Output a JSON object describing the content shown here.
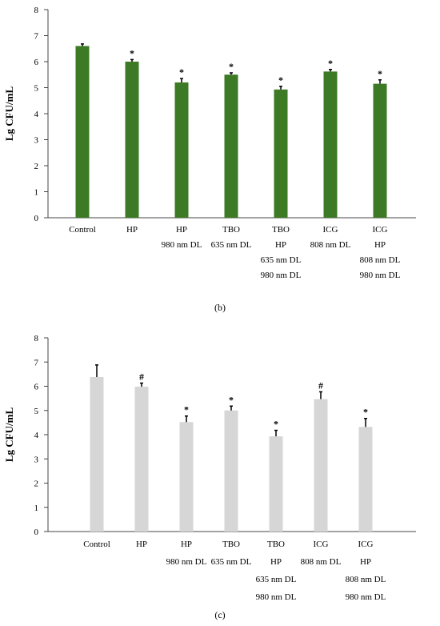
{
  "chart_data": [
    {
      "type": "bar",
      "id": "b",
      "ylabel": "Lg CFU/mL",
      "ylim": [
        0,
        8
      ],
      "yticks": [
        0,
        1,
        2,
        3,
        4,
        5,
        6,
        7,
        8
      ],
      "bar_color": "#3c7a25",
      "error_color": "#000000",
      "categories": [
        [
          "Control"
        ],
        [
          "HP"
        ],
        [
          "HP",
          "980 nm DL"
        ],
        [
          "TBO",
          "635 nm DL"
        ],
        [
          "TBO",
          "HP",
          "635 nm DL",
          "980 nm DL"
        ],
        [
          "ICG",
          "808 nm DL"
        ],
        [
          "ICG",
          "HP",
          "808 nm DL",
          "980 nm DL"
        ]
      ],
      "values": [
        6.6,
        6.0,
        5.2,
        5.5,
        4.93,
        5.62,
        5.15
      ],
      "errors": [
        0.08,
        0.08,
        0.15,
        0.07,
        0.12,
        0.08,
        0.15
      ],
      "significance": [
        "",
        "*",
        "*",
        "*",
        "*",
        "*",
        "*"
      ],
      "caption": "(b)"
    },
    {
      "type": "bar",
      "id": "c",
      "ylabel": "Lg CFU/mL",
      "ylim": [
        0,
        8
      ],
      "yticks": [
        0,
        1,
        2,
        3,
        4,
        5,
        6,
        7,
        8
      ],
      "bar_color": "#d6d6d6",
      "error_color": "#000000",
      "categories": [
        [
          "Control"
        ],
        [
          "HP"
        ],
        [
          "HP",
          "980 nm DL"
        ],
        [
          "TBO",
          "635 nm DL"
        ],
        [
          "TBO",
          "HP",
          "635 nm DL",
          "980 nm DL"
        ],
        [
          "ICG",
          "808 nm DL"
        ],
        [
          "ICG",
          "HP",
          "808 nm DL",
          "980 nm DL"
        ]
      ],
      "values": [
        6.38,
        5.98,
        4.52,
        5.0,
        3.93,
        5.47,
        4.32
      ],
      "errors": [
        0.5,
        0.15,
        0.25,
        0.18,
        0.25,
        0.3,
        0.35
      ],
      "significance": [
        "",
        "#",
        "*",
        "*",
        "*",
        "#",
        "*"
      ],
      "caption": "(c)"
    }
  ]
}
